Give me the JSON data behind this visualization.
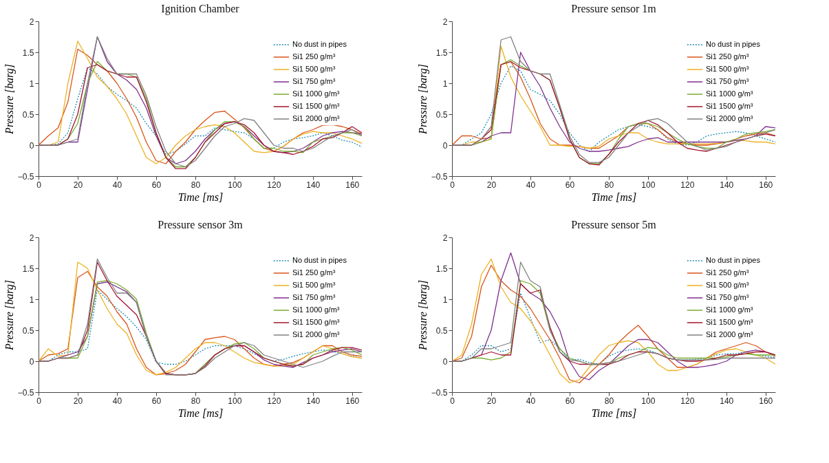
{
  "chart_data": [
    {
      "type": "line",
      "title": "Ignition Chamber",
      "xlabel": "Time [ms]",
      "ylabel": "Pressure [barg]",
      "xlim": [
        0,
        165
      ],
      "xticks": [
        0,
        20,
        40,
        60,
        80,
        100,
        120,
        140,
        160
      ],
      "ylim": [
        -0.5,
        2
      ],
      "yticks": [
        -0.5,
        0,
        0.5,
        1,
        1.5,
        2
      ],
      "grid": false,
      "legend": "top right",
      "marker": "none",
      "x": [
        0,
        5,
        10,
        15,
        20,
        25,
        30,
        35,
        40,
        45,
        50,
        55,
        60,
        65,
        70,
        75,
        80,
        85,
        90,
        95,
        100,
        105,
        110,
        115,
        120,
        125,
        130,
        135,
        140,
        145,
        150,
        155,
        160,
        165
      ],
      "series": [
        {
          "name": "No dust in pipes",
          "color": "#1a8ab4",
          "line_style": "dotted",
          "values": [
            0,
            0,
            0.02,
            0.2,
            0.75,
            1.25,
            1.15,
            0.95,
            0.82,
            0.72,
            0.6,
            0.35,
            0.15,
            -0.15,
            -0.1,
            0.02,
            0.15,
            0.15,
            0.28,
            0.25,
            0.22,
            0.2,
            0.1,
            -0.05,
            -0.05,
            0.05,
            0.1,
            0.12,
            0.15,
            0.2,
            0.15,
            0.08,
            0.05,
            -0.03
          ]
        },
        {
          "name": "Si1 250 g/m³",
          "color": "#d95319",
          "line_style": "solid",
          "values": [
            0,
            0.15,
            0.28,
            0.7,
            1.55,
            1.45,
            1.3,
            1.2,
            1.0,
            0.75,
            0.45,
            0.05,
            -0.25,
            -0.3,
            -0.1,
            0.05,
            0.25,
            0.4,
            0.53,
            0.55,
            0.42,
            0.28,
            0.1,
            -0.05,
            -0.1,
            -0.02,
            0.1,
            0.2,
            0.25,
            0.32,
            0.33,
            0.3,
            0.25,
            0.18
          ]
        },
        {
          "name": "Si1 500 g/m³",
          "color": "#edb120",
          "line_style": "solid",
          "values": [
            0,
            0,
            0.05,
            1.0,
            1.68,
            1.4,
            1.1,
            0.95,
            0.75,
            0.5,
            0.15,
            -0.2,
            -0.3,
            -0.2,
            0.0,
            0.15,
            0.25,
            0.3,
            0.33,
            0.3,
            0.2,
            0.05,
            -0.1,
            -0.12,
            -0.1,
            -0.02,
            0.1,
            0.18,
            0.22,
            0.2,
            0.2,
            0.15,
            0.1,
            0.03
          ]
        },
        {
          "name": "Si1 750 g/m³",
          "color": "#7e2f8e",
          "line_style": "solid",
          "values": [
            0,
            0,
            0,
            0.05,
            0.05,
            0.9,
            1.75,
            1.35,
            1.15,
            1.05,
            0.9,
            0.6,
            0.15,
            -0.2,
            -0.3,
            -0.25,
            -0.1,
            0.1,
            0.25,
            0.35,
            0.38,
            0.3,
            0.15,
            0.0,
            -0.1,
            -0.12,
            -0.1,
            -0.05,
            0.05,
            0.15,
            0.2,
            0.22,
            0.2,
            0.18
          ]
        },
        {
          "name": "Si1 1000 g/m³",
          "color": "#77ac30",
          "line_style": "solid",
          "values": [
            0,
            0,
            0,
            0.1,
            0.35,
            1.0,
            1.35,
            1.2,
            1.15,
            1.15,
            1.1,
            0.75,
            0.2,
            -0.2,
            -0.35,
            -0.35,
            -0.2,
            0.05,
            0.25,
            0.38,
            0.38,
            0.3,
            0.1,
            -0.05,
            -0.05,
            -0.1,
            -0.1,
            -0.12,
            0.05,
            0.1,
            0.15,
            0.2,
            0.2,
            0.15
          ]
        },
        {
          "name": "Si1 1500 g/m³",
          "color": "#a2142f",
          "line_style": "solid",
          "values": [
            0,
            0,
            0,
            0.1,
            0.5,
            1.25,
            1.3,
            1.2,
            1.15,
            1.1,
            1.1,
            0.7,
            0.2,
            -0.2,
            -0.38,
            -0.38,
            -0.2,
            0.05,
            0.2,
            0.35,
            0.38,
            0.33,
            0.2,
            0.0,
            -0.1,
            -0.12,
            -0.15,
            -0.1,
            -0.02,
            0.1,
            0.12,
            0.2,
            0.3,
            0.2
          ]
        },
        {
          "name": "Si1 2000 g/m³",
          "color": "#808080",
          "line_style": "solid",
          "values": [
            0,
            0,
            0,
            0.05,
            0.1,
            1.0,
            1.75,
            1.4,
            1.15,
            1.15,
            1.15,
            0.8,
            0.3,
            -0.1,
            -0.3,
            -0.35,
            -0.25,
            -0.05,
            0.15,
            0.3,
            0.35,
            0.43,
            0.4,
            0.2,
            0.0,
            -0.05,
            -0.05,
            -0.1,
            -0.05,
            0.05,
            0.15,
            0.2,
            0.25,
            0.15
          ]
        }
      ]
    },
    {
      "type": "line",
      "title": "Pressure sensor 1m",
      "xlabel": "Time [ms]",
      "ylabel": "Pressure [barg]",
      "xlim": [
        0,
        165
      ],
      "xticks": [
        0,
        20,
        40,
        60,
        80,
        100,
        120,
        140,
        160
      ],
      "ylim": [
        -0.5,
        2
      ],
      "yticks": [
        -0.5,
        0,
        0.5,
        1,
        1.5,
        2
      ],
      "grid": false,
      "legend": "top right",
      "marker": "none",
      "x": [
        0,
        5,
        10,
        15,
        20,
        25,
        30,
        35,
        40,
        45,
        50,
        55,
        60,
        65,
        70,
        75,
        80,
        85,
        90,
        95,
        100,
        105,
        110,
        115,
        120,
        125,
        130,
        135,
        140,
        145,
        150,
        155,
        160,
        165
      ],
      "series": [
        {
          "name": "No dust in pipes",
          "color": "#1a8ab4",
          "line_style": "dotted",
          "values": [
            0,
            0,
            0.1,
            0.2,
            0.5,
            1.0,
            1.28,
            1.2,
            0.9,
            0.82,
            0.72,
            0.5,
            0.2,
            0.0,
            -0.1,
            0.05,
            0.15,
            0.25,
            0.3,
            0.33,
            0.3,
            0.25,
            0.1,
            0.02,
            0.0,
            0.05,
            0.15,
            0.18,
            0.2,
            0.22,
            0.2,
            0.15,
            0.1,
            0.05
          ]
        },
        {
          "name": "Si1 250 g/m³",
          "color": "#d95319",
          "line_style": "solid",
          "values": [
            0,
            0.15,
            0.15,
            0.1,
            0.12,
            1.3,
            1.35,
            1.1,
            0.75,
            0.35,
            0.1,
            0.0,
            0.0,
            -0.02,
            -0.05,
            -0.05,
            0.05,
            0.15,
            0.3,
            0.35,
            0.35,
            0.25,
            0.12,
            0.05,
            0.02,
            0.0,
            0.0,
            0.02,
            0.05,
            0.1,
            0.15,
            0.18,
            0.2,
            0.15
          ]
        },
        {
          "name": "Si1 500 g/m³",
          "color": "#edb120",
          "line_style": "solid",
          "values": [
            0,
            0,
            0.05,
            0.05,
            0.1,
            1.6,
            1.1,
            0.8,
            0.55,
            0.3,
            0.0,
            0.0,
            -0.02,
            -0.02,
            -0.05,
            -0.02,
            0.1,
            0.15,
            0.2,
            0.2,
            0.1,
            0.05,
            0.02,
            0.02,
            0.02,
            0.02,
            0.02,
            0.03,
            0.05,
            0.08,
            0.07,
            0.05,
            0.05,
            0.02
          ]
        },
        {
          "name": "Si1 750 g/m³",
          "color": "#7e2f8e",
          "line_style": "solid",
          "values": [
            null,
            null,
            0,
            0.05,
            0.15,
            0.2,
            0.2,
            1.5,
            1.2,
            0.95,
            0.6,
            0.3,
            0.05,
            -0.05,
            -0.1,
            -0.1,
            -0.08,
            -0.05,
            -0.02,
            0.05,
            0.1,
            0.12,
            0.05,
            0.05,
            0.05,
            0.05,
            0.05,
            0.05,
            0.05,
            0.08,
            0.1,
            0.15,
            0.3,
            0.28
          ]
        },
        {
          "name": "Si1 1000 g/m³",
          "color": "#77ac30",
          "line_style": "solid",
          "values": [
            0,
            0,
            0,
            0.05,
            0.1,
            1.3,
            1.38,
            1.28,
            1.2,
            1.15,
            1.05,
            0.6,
            0.1,
            -0.2,
            -0.3,
            -0.3,
            -0.15,
            0.1,
            0.3,
            0.35,
            0.35,
            0.3,
            0.2,
            0.1,
            0.02,
            -0.02,
            -0.05,
            -0.05,
            0.05,
            0.1,
            0.18,
            0.2,
            0.22,
            0.25
          ]
        },
        {
          "name": "Si1 1500 g/m³",
          "color": "#a2142f",
          "line_style": "solid",
          "values": [
            0,
            0,
            0,
            0.1,
            0.25,
            1.3,
            1.35,
            1.25,
            1.2,
            1.15,
            1.05,
            0.6,
            0.1,
            -0.2,
            -0.3,
            -0.32,
            -0.15,
            0.05,
            0.2,
            0.35,
            0.4,
            0.33,
            0.2,
            0.05,
            -0.05,
            -0.08,
            -0.1,
            -0.05,
            0.0,
            0.05,
            0.1,
            0.15,
            0.18,
            0.15
          ]
        },
        {
          "name": "Si1 2000 g/m³",
          "color": "#808080",
          "line_style": "solid",
          "values": [
            0,
            0,
            0,
            0.1,
            0.3,
            1.7,
            1.75,
            1.35,
            1.2,
            1.15,
            1.15,
            0.65,
            0.15,
            -0.15,
            -0.28,
            -0.28,
            -0.2,
            0.0,
            0.2,
            0.3,
            0.4,
            0.43,
            0.35,
            0.2,
            0.05,
            -0.02,
            -0.08,
            -0.05,
            -0.02,
            0.05,
            0.1,
            0.15,
            0.2,
            0.25
          ]
        }
      ]
    },
    {
      "type": "line",
      "title": "Pressure sensor 3m",
      "xlabel": "Time [ms]",
      "ylabel": "Pressure [barg]",
      "xlim": [
        0,
        165
      ],
      "xticks": [
        0,
        20,
        40,
        60,
        80,
        100,
        120,
        140,
        160
      ],
      "ylim": [
        -0.5,
        2
      ],
      "yticks": [
        -0.5,
        0,
        0.5,
        1,
        1.5,
        2
      ],
      "grid": false,
      "legend": "top right",
      "marker": "none",
      "x": [
        0,
        5,
        10,
        15,
        20,
        25,
        30,
        35,
        40,
        45,
        50,
        55,
        60,
        65,
        70,
        75,
        80,
        85,
        90,
        95,
        100,
        105,
        110,
        115,
        120,
        125,
        130,
        135,
        140,
        145,
        150,
        155,
        160,
        165
      ],
      "series": [
        {
          "name": "No dust in pipes",
          "color": "#1a8ab4",
          "line_style": "dotted",
          "values": [
            0,
            0,
            0.1,
            0.15,
            0.15,
            0.2,
            1.15,
            1.0,
            0.85,
            0.72,
            0.55,
            0.35,
            -0.02,
            -0.05,
            -0.05,
            0.0,
            0.1,
            0.2,
            0.25,
            0.25,
            0.25,
            0.2,
            0.12,
            0.05,
            0.0,
            0.03,
            0.08,
            0.12,
            0.15,
            0.18,
            0.16,
            0.12,
            0.08,
            0.05
          ]
        },
        {
          "name": "Si1 250 g/m³",
          "color": "#d95319",
          "line_style": "solid",
          "values": [
            0,
            0.1,
            0.12,
            0.2,
            1.35,
            1.45,
            1.2,
            1.05,
            0.8,
            0.6,
            0.2,
            -0.1,
            -0.22,
            -0.2,
            -0.15,
            -0.05,
            0.15,
            0.35,
            0.38,
            0.4,
            0.35,
            0.2,
            0.05,
            -0.05,
            -0.08,
            -0.05,
            -0.02,
            0.05,
            0.15,
            0.25,
            0.25,
            0.15,
            0.1,
            0.08
          ]
        },
        {
          "name": "Si1 500 g/m³",
          "color": "#edb120",
          "line_style": "solid",
          "values": [
            0,
            0.2,
            0.08,
            0.1,
            1.6,
            1.5,
            1.15,
            0.85,
            0.6,
            0.45,
            0.1,
            -0.15,
            -0.22,
            -0.18,
            -0.1,
            0.05,
            0.2,
            0.3,
            0.3,
            0.25,
            0.15,
            0.05,
            -0.02,
            -0.05,
            -0.08,
            -0.08,
            -0.05,
            0.05,
            0.15,
            0.25,
            0.2,
            0.12,
            0.07,
            0.05
          ]
        },
        {
          "name": "Si1 750 g/m³",
          "color": "#7e2f8e",
          "line_style": "solid",
          "values": [
            0,
            0,
            0.05,
            0.1,
            0.15,
            0.4,
            1.25,
            1.28,
            1.2,
            1.12,
            0.95,
            0.4,
            0.0,
            -0.2,
            -0.22,
            -0.22,
            -0.2,
            -0.05,
            0.1,
            0.2,
            0.25,
            0.25,
            0.15,
            0.02,
            -0.05,
            -0.08,
            -0.1,
            -0.02,
            0.05,
            0.1,
            0.15,
            0.18,
            0.2,
            0.15
          ]
        },
        {
          "name": "Si1 1000 g/m³",
          "color": "#77ac30",
          "line_style": "solid",
          "values": [
            null,
            null,
            0.05,
            0.05,
            0.05,
            0.4,
            1.28,
            1.3,
            1.25,
            1.15,
            1.0,
            0.45,
            0.0,
            -0.2,
            -0.22,
            -0.22,
            -0.2,
            -0.05,
            0.1,
            0.2,
            0.28,
            0.3,
            0.2,
            0.05,
            0.0,
            -0.05,
            -0.08,
            -0.05,
            0.1,
            0.15,
            0.2,
            0.22,
            0.18,
            0.1
          ]
        },
        {
          "name": "Si1 1500 g/m³",
          "color": "#a2142f",
          "line_style": "solid",
          "values": [
            0,
            0,
            0.05,
            0.05,
            0.1,
            0.5,
            1.6,
            1.3,
            1.05,
            0.9,
            0.75,
            0.4,
            0.0,
            -0.2,
            -0.22,
            -0.22,
            -0.2,
            -0.08,
            0.1,
            0.2,
            0.25,
            0.25,
            0.15,
            0.05,
            0.0,
            -0.05,
            -0.08,
            -0.05,
            0.05,
            0.1,
            0.18,
            0.22,
            0.22,
            0.18
          ]
        },
        {
          "name": "Si1 2000 g/m³",
          "color": "#808080",
          "line_style": "solid",
          "values": [
            0,
            0,
            0.05,
            0.05,
            0.1,
            0.6,
            1.65,
            1.35,
            1.1,
            1.1,
            0.95,
            0.4,
            0.0,
            -0.22,
            -0.22,
            -0.22,
            -0.2,
            -0.1,
            0.05,
            0.15,
            0.25,
            0.3,
            0.25,
            0.1,
            0.05,
            0.0,
            -0.05,
            -0.1,
            -0.05,
            0.0,
            0.08,
            0.15,
            0.15,
            0.15
          ]
        }
      ]
    },
    {
      "type": "line",
      "title": "Pressure sensor 5m",
      "xlabel": "Time [ms]",
      "ylabel": "Pressure [barg]",
      "xlim": [
        0,
        165
      ],
      "xticks": [
        0,
        20,
        40,
        60,
        80,
        100,
        120,
        140,
        160
      ],
      "ylim": [
        -0.5,
        2
      ],
      "yticks": [
        -0.5,
        0,
        0.5,
        1,
        1.5,
        2
      ],
      "grid": false,
      "legend": "top right",
      "marker": "none",
      "x": [
        0,
        5,
        10,
        15,
        20,
        25,
        30,
        35,
        40,
        45,
        50,
        55,
        60,
        65,
        70,
        75,
        80,
        85,
        90,
        95,
        100,
        105,
        110,
        115,
        120,
        125,
        130,
        135,
        140,
        145,
        150,
        155,
        160,
        165
      ],
      "series": [
        {
          "name": "No dust in pipes",
          "color": "#1a8ab4",
          "line_style": "dotted",
          "values": [
            0,
            0,
            0.1,
            0.25,
            0.25,
            0.15,
            0.2,
            1.1,
            0.7,
            0.3,
            0.35,
            0.2,
            0.02,
            0.03,
            -0.02,
            -0.05,
            0.08,
            0.15,
            0.18,
            0.2,
            0.18,
            0.12,
            0.05,
            0.02,
            0.02,
            0.03,
            0.05,
            0.1,
            0.12,
            0.12,
            0.15,
            0.1,
            0.08,
            0.06
          ]
        },
        {
          "name": "Si1 250 g/m³",
          "color": "#d95319",
          "line_style": "solid",
          "values": [
            0,
            0.05,
            0.4,
            1.2,
            1.55,
            1.3,
            1.15,
            1.05,
            0.85,
            0.6,
            0.35,
            0.05,
            -0.3,
            -0.35,
            -0.2,
            -0.05,
            0.1,
            0.3,
            0.45,
            0.58,
            0.4,
            0.2,
            0.05,
            -0.1,
            -0.1,
            -0.05,
            0.05,
            0.15,
            0.2,
            0.25,
            0.3,
            0.25,
            0.15,
            0.08
          ]
        },
        {
          "name": "Si1 500 g/m³",
          "color": "#edb120",
          "line_style": "solid",
          "values": [
            0,
            0.1,
            0.6,
            1.4,
            1.65,
            1.2,
            0.95,
            0.85,
            0.65,
            0.4,
            0.1,
            -0.2,
            -0.35,
            -0.3,
            -0.1,
            0.1,
            0.25,
            0.3,
            0.33,
            0.3,
            0.15,
            -0.05,
            -0.15,
            -0.15,
            -0.1,
            -0.05,
            0.05,
            0.12,
            0.18,
            0.2,
            0.15,
            0.1,
            0.05,
            -0.05
          ]
        },
        {
          "name": "Si1 750 g/m³",
          "color": "#7e2f8e",
          "line_style": "solid",
          "values": [
            0,
            0,
            0.05,
            0.1,
            0.5,
            1.3,
            1.75,
            1.25,
            1.1,
            1.0,
            0.8,
            0.5,
            0.0,
            -0.25,
            -0.3,
            -0.15,
            -0.05,
            0.1,
            0.25,
            0.35,
            0.35,
            0.3,
            0.15,
            0.0,
            -0.1,
            -0.1,
            -0.08,
            -0.05,
            0.0,
            0.1,
            0.15,
            0.18,
            0.15,
            0.1
          ]
        },
        {
          "name": "Si1 1000 g/m³",
          "color": "#77ac30",
          "line_style": "solid",
          "values": [
            0,
            0,
            0.05,
            0.05,
            0.02,
            0.05,
            0.15,
            1.3,
            1.25,
            1.1,
            0.5,
            0.2,
            0.05,
            0.0,
            -0.05,
            -0.05,
            -0.05,
            0.05,
            0.1,
            0.15,
            0.22,
            0.2,
            0.1,
            0.05,
            0.05,
            0.05,
            0.05,
            0.05,
            0.07,
            0.1,
            0.12,
            0.1,
            0.1,
            0.1
          ]
        },
        {
          "name": "Si1 1500 g/m³",
          "color": "#a2142f",
          "line_style": "solid",
          "values": [
            0,
            0,
            0.05,
            0.1,
            0.15,
            0.1,
            0.1,
            1.25,
            1.1,
            1.15,
            0.55,
            0.15,
            0.0,
            -0.05,
            -0.05,
            -0.05,
            -0.05,
            0.0,
            0.1,
            0.15,
            0.15,
            0.12,
            0.05,
            0.02,
            0.0,
            0.0,
            0.02,
            0.05,
            0.1,
            0.1,
            0.12,
            0.15,
            0.15,
            0.1
          ]
        },
        {
          "name": "Si1 2000 g/m³",
          "color": "#808080",
          "line_style": "solid",
          "values": [
            0,
            0,
            0.05,
            0.2,
            0.2,
            0.25,
            0.3,
            1.6,
            1.3,
            1.2,
            0.5,
            0.15,
            0.02,
            0.0,
            -0.05,
            -0.05,
            -0.02,
            0.0,
            0.05,
            0.1,
            0.15,
            0.12,
            0.05,
            0.02,
            0.02,
            0.02,
            0.02,
            0.03,
            0.05,
            0.05,
            0.05,
            0.05,
            0.05,
            0.05
          ]
        }
      ]
    }
  ]
}
